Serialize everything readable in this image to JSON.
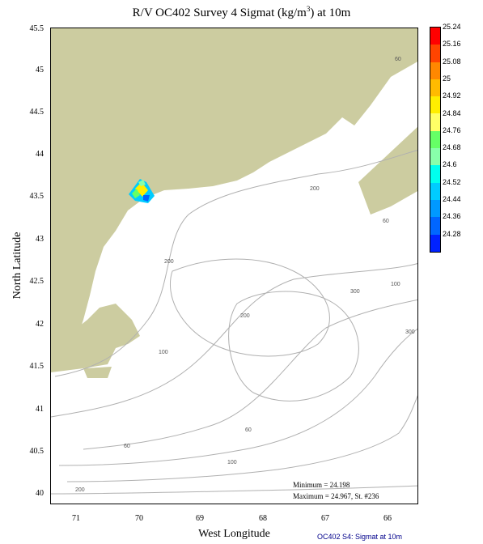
{
  "title": "R/V OC402 Survey 4 Sigmat (kg/m",
  "title_sup": "3",
  "title_end": ") at 10m",
  "y_axis": {
    "label": "North Latitude",
    "ticks": [
      "45.5",
      "45",
      "44.5",
      "44",
      "43.5",
      "43",
      "42.5",
      "42",
      "41.5",
      "41",
      "40.5",
      "40"
    ]
  },
  "x_axis": {
    "label": "West Longitude",
    "ticks": [
      "71",
      "70",
      "69",
      "68",
      "67",
      "66"
    ]
  },
  "colorbar": {
    "labels": [
      "25.24",
      "25.16",
      "25.08",
      "25",
      "24.92",
      "24.84",
      "24.76",
      "24.68",
      "24.6",
      "24.52",
      "24.44",
      "24.36",
      "24.28"
    ],
    "colors": [
      "#ff0000",
      "#ff4400",
      "#ff8800",
      "#ffbb00",
      "#ffee00",
      "#ffff66",
      "#66ff66",
      "#88ffaa",
      "#00ffee",
      "#00ccff",
      "#0099ff",
      "#0066ff",
      "#0022ff"
    ]
  },
  "contours": [
    "60",
    "60",
    "200",
    "200",
    "200",
    "300",
    "100",
    "300",
    "100",
    "60",
    "60",
    "100",
    "200"
  ],
  "stats": {
    "min": "Minimum = 24.198",
    "max": "Maximum = 24.967, St. #236"
  },
  "footnote": "OC402  S4: Sigmat at 10m",
  "colors": {
    "land": "#cccca0",
    "contour": "#b0b0b0"
  }
}
